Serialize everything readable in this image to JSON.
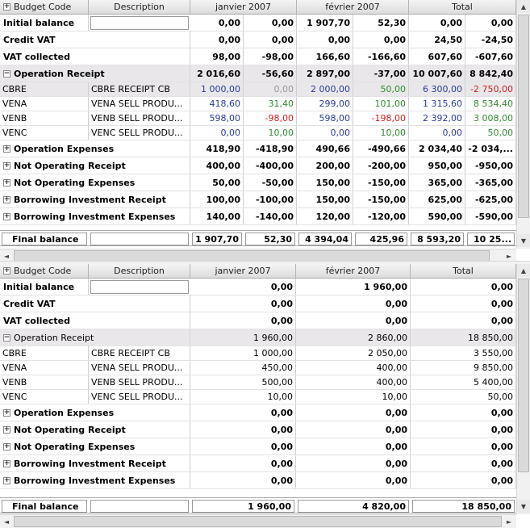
{
  "top": {
    "headers": [
      "Budget Code",
      "Description",
      "janvier 2007",
      "février 2007",
      "Total"
    ],
    "rows": [
      {
        "type": "balance",
        "label": "Initial balance",
        "desc": "",
        "v": [
          "0,00",
          "0,00",
          "1 907,70",
          "52,30",
          "0,00",
          "0,00"
        ]
      },
      {
        "type": "vat",
        "label": "Credit VAT",
        "v": [
          "0,00",
          "0,00",
          "0,00",
          "0,00",
          "24,50",
          "-24,50"
        ]
      },
      {
        "type": "vat",
        "label": "VAT collected",
        "v": [
          "98,00",
          "-98,00",
          "166,60",
          "-166,60",
          "607,60",
          "-607,60"
        ]
      },
      {
        "type": "group-open",
        "label": "Operation Receipt",
        "v": [
          "2 016,60",
          "-56,60",
          "2 897,00",
          "-37,00",
          "10 007,60",
          "8 842,40"
        ]
      },
      {
        "type": "detail",
        "code": "CBRE",
        "desc": "CBRE RECEIPT CB",
        "v": [
          "1 000,00",
          "0,00",
          "2 000,00",
          "50,00",
          "6 300,00",
          "-2 750,00"
        ],
        "c": [
          "blue",
          "grayt",
          "blue",
          "green",
          "blue",
          "red"
        ],
        "bg": true
      },
      {
        "type": "detail",
        "code": "VENA",
        "desc": "VENA SELL PRODU...",
        "v": [
          "418,60",
          "31,40",
          "299,00",
          "101,00",
          "1 315,60",
          "8 534,40"
        ],
        "c": [
          "blue",
          "green",
          "blue",
          "green",
          "blue",
          "green"
        ]
      },
      {
        "type": "detail",
        "code": "VENB",
        "desc": "VENB SELL PRODU...",
        "v": [
          "598,00",
          "-98,00",
          "598,00",
          "-198,00",
          "2 392,00",
          "3 008,00"
        ],
        "c": [
          "blue",
          "red",
          "blue",
          "red",
          "blue",
          "green"
        ]
      },
      {
        "type": "detail",
        "code": "VENC",
        "desc": "VENC SELL PRODU...",
        "v": [
          "0,00",
          "10,00",
          "0,00",
          "10,00",
          "0,00",
          "50,00"
        ],
        "c": [
          "blue",
          "green",
          "blue",
          "green",
          "blue",
          "green"
        ]
      },
      {
        "type": "group",
        "label": "Operation Expenses",
        "v": [
          "418,90",
          "-418,90",
          "490,66",
          "-490,66",
          "2 034,40",
          "-2 034,..."
        ]
      },
      {
        "type": "group",
        "label": "Not Operating Receipt",
        "v": [
          "400,00",
          "-400,00",
          "200,00",
          "-200,00",
          "950,00",
          "-950,00"
        ]
      },
      {
        "type": "group",
        "label": "Not Operating Expenses",
        "v": [
          "50,00",
          "-50,00",
          "150,00",
          "-150,00",
          "365,00",
          "-365,00"
        ]
      },
      {
        "type": "group",
        "label": "Borrowing Investment Receipt",
        "v": [
          "100,00",
          "-100,00",
          "150,00",
          "-150,00",
          "625,00",
          "-625,00"
        ]
      },
      {
        "type": "group",
        "label": "Borrowing Investment Expenses",
        "v": [
          "140,00",
          "-140,00",
          "120,00",
          "-120,00",
          "590,00",
          "-590,00"
        ]
      }
    ],
    "final": {
      "label": "Final balance",
      "v": [
        "1 907,70",
        "52,30",
        "4 394,04",
        "425,96",
        "8 593,20",
        "10 25..."
      ]
    }
  },
  "bottom": {
    "headers": [
      "Budget Code",
      "Description",
      "janvier 2007",
      "février 2007",
      "Total"
    ],
    "rows": [
      {
        "type": "balance",
        "label": "Initial balance",
        "v": [
          "0,00",
          "1 960,00",
          "0,00"
        ]
      },
      {
        "type": "vat",
        "label": "Credit VAT",
        "v": [
          "0,00",
          "0,00",
          "0,00"
        ]
      },
      {
        "type": "vat",
        "label": "VAT collected",
        "v": [
          "0,00",
          "0,00",
          "0,00"
        ]
      },
      {
        "type": "group-open",
        "label": "Operation Receipt",
        "v": [
          "1 960,00",
          "2 860,00",
          "18 850,00"
        ]
      },
      {
        "type": "detail",
        "code": "CBRE",
        "desc": "CBRE RECEIPT CB",
        "v": [
          "1 000,00",
          "2 050,00",
          "3 550,00"
        ]
      },
      {
        "type": "detail",
        "code": "VENA",
        "desc": "VENA SELL PRODU...",
        "v": [
          "450,00",
          "400,00",
          "9 850,00"
        ]
      },
      {
        "type": "detail",
        "code": "VENB",
        "desc": "VENB SELL PRODU...",
        "v": [
          "500,00",
          "400,00",
          "5 400,00"
        ]
      },
      {
        "type": "detail",
        "code": "VENC",
        "desc": "VENC SELL PRODU...",
        "v": [
          "10,00",
          "10,00",
          "50,00"
        ]
      },
      {
        "type": "group",
        "label": "Operation Expenses",
        "v": [
          "0,00",
          "0,00",
          "0,00"
        ]
      },
      {
        "type": "group",
        "label": "Not Operating Receipt",
        "v": [
          "0,00",
          "0,00",
          "0,00"
        ]
      },
      {
        "type": "group",
        "label": "Not Operating Expenses",
        "v": [
          "0,00",
          "0,00",
          "0,00"
        ]
      },
      {
        "type": "group",
        "label": "Borrowing Investment Receipt",
        "v": [
          "0,00",
          "0,00",
          "0,00"
        ]
      },
      {
        "type": "group",
        "label": "Borrowing Investment Expenses",
        "v": [
          "0,00",
          "0,00",
          "0,00"
        ]
      }
    ],
    "final": {
      "label": "Final balance",
      "v": [
        "1 960,00",
        "4 820,00",
        "18 850,00"
      ]
    }
  },
  "icons": {
    "expand": "+",
    "collapse": "−",
    "up": "▲",
    "down": "▼",
    "left": "◄",
    "right": "►"
  }
}
